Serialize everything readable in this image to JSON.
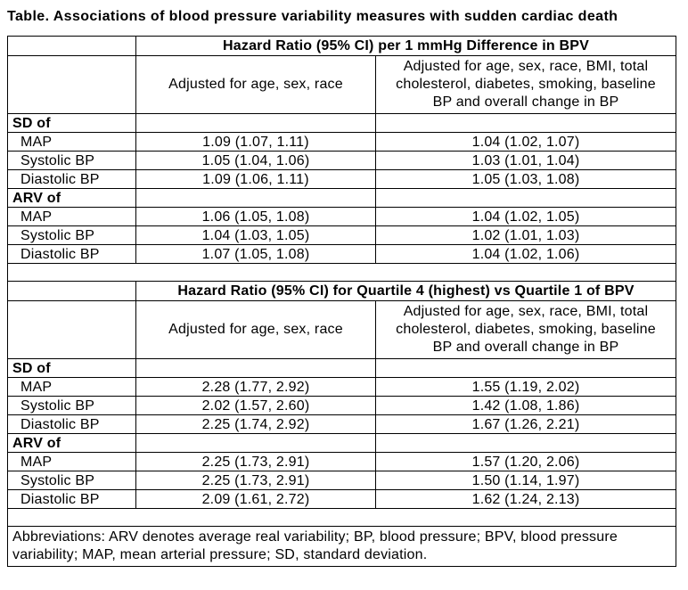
{
  "title": "Table. Associations of blood pressure variability measures with sudden cardiac death",
  "tables": [
    {
      "header": "Hazard Ratio (95% CI) per 1 mmHg Difference in BPV",
      "adjusted_basic_label": "Adjusted for age, sex, race",
      "adjusted_full_label": "Adjusted for age, sex, race, BMI, total cholesterol, diabetes, smoking, baseline BP and overall change in BP",
      "sections": [
        {
          "label": "SD of",
          "rows": [
            {
              "label": "MAP",
              "basic": "1.09 (1.07, 1.11)",
              "full": "1.04 (1.02, 1.07)"
            },
            {
              "label": "Systolic BP",
              "basic": "1.05 (1.04, 1.06)",
              "full": "1.03 (1.01, 1.04)"
            },
            {
              "label": "Diastolic BP",
              "basic": "1.09 (1.06, 1.11)",
              "full": "1.05 (1.03, 1.08)"
            }
          ]
        },
        {
          "label": "ARV of",
          "rows": [
            {
              "label": "MAP",
              "basic": "1.06 (1.05, 1.08)",
              "full": "1.04 (1.02, 1.05)"
            },
            {
              "label": "Systolic BP",
              "basic": "1.04 (1.03, 1.05)",
              "full": "1.02 (1.01, 1.03)"
            },
            {
              "label": "Diastolic BP",
              "basic": "1.07 (1.05, 1.08)",
              "full": "1.04 (1.02, 1.06)"
            }
          ]
        }
      ]
    },
    {
      "header": "Hazard Ratio (95% CI) for Quartile 4 (highest) vs Quartile 1 of BPV",
      "adjusted_basic_label": "Adjusted for age, sex, race",
      "adjusted_full_label": "Adjusted for age, sex, race, BMI, total cholesterol, diabetes, smoking, baseline BP and overall change in BP",
      "sections": [
        {
          "label": "SD of",
          "rows": [
            {
              "label": "MAP",
              "basic": "2.28 (1.77, 2.92)",
              "full": "1.55 (1.19, 2.02)"
            },
            {
              "label": "Systolic BP",
              "basic": "2.02 (1.57, 2.60)",
              "full": "1.42 (1.08, 1.86)"
            },
            {
              "label": "Diastolic BP",
              "basic": "2.25 (1.74, 2.92)",
              "full": "1.67 (1.26, 2.21)"
            }
          ]
        },
        {
          "label": "ARV of",
          "rows": [
            {
              "label": "MAP",
              "basic": "2.25 (1.73, 2.91)",
              "full": "1.57 (1.20, 2.06)"
            },
            {
              "label": "Systolic BP",
              "basic": "2.25 (1.73, 2.91)",
              "full": "1.50 (1.14, 1.97)"
            },
            {
              "label": "Diastolic BP",
              "basic": "2.09 (1.61, 2.72)",
              "full": "1.62 (1.24, 2.13)"
            }
          ]
        }
      ]
    }
  ],
  "footnote": "Abbreviations: ARV denotes average real variability; BP, blood pressure; BPV, blood pressure variability; MAP, mean arterial pressure; SD, standard deviation.",
  "colors": {
    "text": "#000000",
    "border": "#000000",
    "background": "#ffffff"
  }
}
